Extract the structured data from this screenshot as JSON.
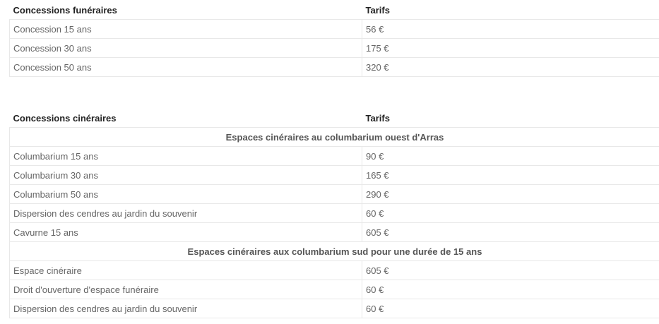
{
  "table1": {
    "headers": [
      "Concessions funéraires",
      "Tarifs"
    ],
    "rows": [
      [
        "Concession 15 ans",
        "56 €"
      ],
      [
        "Concession 30 ans",
        "175 €"
      ],
      [
        "Concession 50 ans",
        "320 €"
      ]
    ]
  },
  "table2": {
    "headers": [
      "Concessions cinéraires",
      "Tarifs"
    ],
    "section1": "Espaces cinéraires au columbarium ouest d'Arras",
    "rows1": [
      [
        "Columbarium 15 ans",
        "90 €"
      ],
      [
        "Columbarium 30 ans",
        "165 €"
      ],
      [
        "Columbarium 50 ans",
        "290 €"
      ],
      [
        "Dispersion des cendres au jardin du souvenir",
        "60 €"
      ],
      [
        "Cavurne 15 ans",
        "605 €"
      ]
    ],
    "section2": "Espaces cinéraires aux columbarium sud pour une durée de 15 ans",
    "rows2": [
      [
        "Espace cinéraire",
        "605 €"
      ],
      [
        "Droit d'ouverture  d'espace funéraire",
        "60 €"
      ],
      [
        "Dispersion des cendres au jardin du souvenir",
        "60 €"
      ]
    ]
  }
}
